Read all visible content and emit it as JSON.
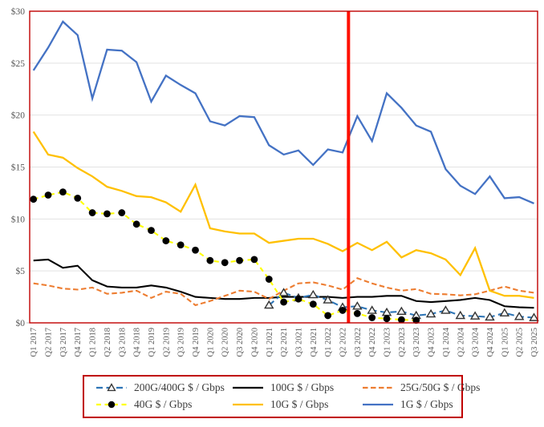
{
  "figure": {
    "background": "#FFFFFF",
    "plot_border_color": "#C00000",
    "gridline_color": "#E2E2E2",
    "axis_line_color": "#BFBFBF",
    "axis_label_color": "#595959"
  },
  "y_axis": {
    "ticks": [
      {
        "label": "$0",
        "value": 0
      },
      {
        "label": "$5",
        "value": 5
      },
      {
        "label": "$10",
        "value": 10
      },
      {
        "label": "$15",
        "value": 15
      },
      {
        "label": "$20",
        "value": 20
      },
      {
        "label": "$25",
        "value": 25
      },
      {
        "label": "$30",
        "value": 30
      }
    ],
    "min": 0,
    "max": 30
  },
  "red_event_line": {
    "color": "#FF0F00",
    "between": [
      "Q2 2022",
      "Q3 2022"
    ],
    "fraction": 0.4
  },
  "chart_data": {
    "type": "line",
    "title": "",
    "xlabel": "",
    "ylabel": "",
    "ylim": [
      0,
      30
    ],
    "grid": true,
    "legend_position": "bottom",
    "x": [
      "Q1 2017",
      "Q2 2017",
      "Q3 2017",
      "Q4 2017",
      "Q1 2018",
      "Q2 2018",
      "Q3 2018",
      "Q4 2018",
      "Q1 2019",
      "Q2 2019",
      "Q3 2019",
      "Q4 2019",
      "Q1 2020",
      "Q2 2020",
      "Q3 2020",
      "Q4 2020",
      "Q1 2021",
      "Q2 2021",
      "Q3 2021",
      "Q4 2021",
      "Q1 2022",
      "Q2 2022",
      "Q3 2022",
      "Q4 2022",
      "Q1 2023",
      "Q2 2023",
      "Q3 2023",
      "Q4 2023",
      "Q1 2024",
      "Q2 2024",
      "Q3 2024",
      "Q4 2024",
      "Q1 2025",
      "Q2 2025",
      "Q3 2025"
    ],
    "series": [
      {
        "name": "200G/400G $ / Gbps",
        "color": "#2E75B6",
        "line_style": "dashed",
        "marker": "open-triangle",
        "marker_fill": "#F4F4F4",
        "marker_edge": "#333333",
        "start_index": 16,
        "values": [
          1.7,
          2.9,
          2.4,
          2.7,
          2.2,
          1.5,
          1.6,
          1.2,
          1.0,
          1.1,
          0.7,
          0.85,
          1.2,
          0.7,
          0.65,
          0.55,
          0.95,
          0.6,
          0.5
        ]
      },
      {
        "name": "100G $ / Gbps",
        "color": "#000000",
        "line_style": "solid",
        "marker": "none",
        "start_index": 0,
        "values": [
          6.0,
          6.1,
          5.3,
          5.5,
          4.1,
          3.5,
          3.4,
          3.4,
          3.6,
          3.4,
          3.0,
          2.5,
          2.4,
          2.3,
          2.3,
          2.4,
          2.4,
          2.5,
          2.5,
          2.5,
          2.5,
          2.4,
          2.5,
          2.5,
          2.6,
          2.6,
          2.1,
          2.0,
          2.1,
          2.2,
          2.4,
          2.2,
          1.6,
          1.5,
          1.45
        ]
      },
      {
        "name": "25G/50G $ / Gbps",
        "color": "#ED7D31",
        "line_style": "dashed",
        "marker": "none",
        "start_index": 0,
        "values": [
          3.8,
          3.6,
          3.3,
          3.2,
          3.4,
          2.8,
          2.9,
          3.1,
          2.4,
          3.0,
          2.8,
          1.7,
          2.1,
          2.6,
          3.1,
          3.0,
          2.3,
          3.1,
          3.8,
          3.9,
          3.6,
          3.2,
          4.3,
          3.8,
          3.4,
          3.1,
          3.25,
          2.8,
          2.75,
          2.65,
          2.75,
          3.1,
          3.5,
          3.1,
          2.9
        ]
      },
      {
        "name": "40G $ / Gbps",
        "color": "#FFFF00",
        "line_style": "dashed",
        "marker": "filled-circle",
        "marker_fill": "#000000",
        "marker_edge": "#000000",
        "start_index": 0,
        "values": [
          11.9,
          12.3,
          12.6,
          12.0,
          10.6,
          10.5,
          10.6,
          9.5,
          8.9,
          7.9,
          7.5,
          7.0,
          6.0,
          5.8,
          6.0,
          6.1,
          4.2,
          2.0,
          2.3,
          1.8,
          0.7,
          1.2,
          0.9,
          0.5,
          0.4,
          0.3,
          0.25
        ]
      },
      {
        "name": "10G $ / Gbps",
        "color": "#FFC000",
        "line_style": "solid",
        "marker": "none",
        "start_index": 0,
        "values": [
          18.4,
          16.2,
          15.9,
          14.9,
          14.1,
          13.1,
          12.7,
          12.2,
          12.1,
          11.6,
          10.7,
          13.3,
          9.1,
          8.8,
          8.6,
          8.6,
          7.7,
          7.9,
          8.1,
          8.1,
          7.6,
          6.9,
          7.7,
          7.0,
          7.8,
          6.3,
          7.0,
          6.7,
          6.1,
          4.6,
          7.2,
          3.1,
          2.6,
          2.6,
          2.4
        ]
      },
      {
        "name": "1G $ / Gbps",
        "color": "#4472C4",
        "line_style": "solid",
        "marker": "none",
        "start_index": 0,
        "values": [
          24.3,
          26.5,
          29.0,
          27.7,
          21.6,
          26.3,
          26.2,
          25.1,
          21.3,
          23.8,
          22.9,
          22.1,
          19.4,
          19.0,
          19.9,
          19.8,
          17.1,
          16.2,
          16.6,
          15.2,
          16.7,
          16.4,
          19.9,
          17.5,
          22.1,
          20.7,
          19.0,
          18.4,
          14.8,
          13.2,
          12.4,
          14.1,
          12.0,
          12.1,
          11.5
        ]
      }
    ]
  },
  "legend": {
    "border_color": "#C00000",
    "items": [
      "200G/400G $ / Gbps",
      "100G $ / Gbps",
      "25G/50G $ / Gbps",
      "40G $ / Gbps",
      "10G $ / Gbps",
      "1G $ / Gbps"
    ]
  }
}
